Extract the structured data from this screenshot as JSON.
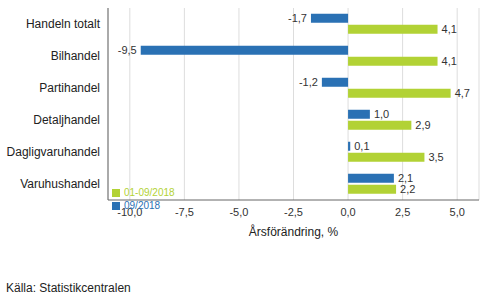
{
  "chart_data": {
    "type": "bar",
    "orientation": "horizontal",
    "categories": [
      "Handeln totalt",
      "Bilhandel",
      "Partihandel",
      "Detaljhandel",
      "Dagligvaruhandel",
      "Varuhushandel"
    ],
    "series": [
      {
        "name": "09/2018",
        "color": "#2a71b4",
        "values": [
          -1.7,
          -9.5,
          -1.2,
          1.0,
          0.1,
          2.1
        ],
        "value_labels": [
          "-1,7",
          "-9,5",
          "-1,2",
          "1,0",
          "0,1",
          "2,1"
        ]
      },
      {
        "name": "01-09/2018",
        "color": "#b2d235",
        "values": [
          4.1,
          4.1,
          4.7,
          2.9,
          3.5,
          2.2
        ],
        "value_labels": [
          "4,1",
          "4,1",
          "4,7",
          "2,9",
          "3,5",
          "2,2"
        ]
      }
    ],
    "x_label": "Årsförändring, %",
    "xlim": [
      -11,
      6
    ],
    "xticks": [
      {
        "value": -10,
        "label": "-10,0"
      },
      {
        "value": -7.5,
        "label": "-7,5"
      },
      {
        "value": -5,
        "label": "-5,0"
      },
      {
        "value": -2.5,
        "label": "-2,5"
      },
      {
        "value": 0,
        "label": "0,0"
      },
      {
        "value": 2.5,
        "label": "2,5"
      },
      {
        "value": 5,
        "label": "5,0"
      }
    ],
    "grid": true,
    "legend": "lower left",
    "data_labels": true,
    "source": "Källa: Statistikcentralen"
  }
}
